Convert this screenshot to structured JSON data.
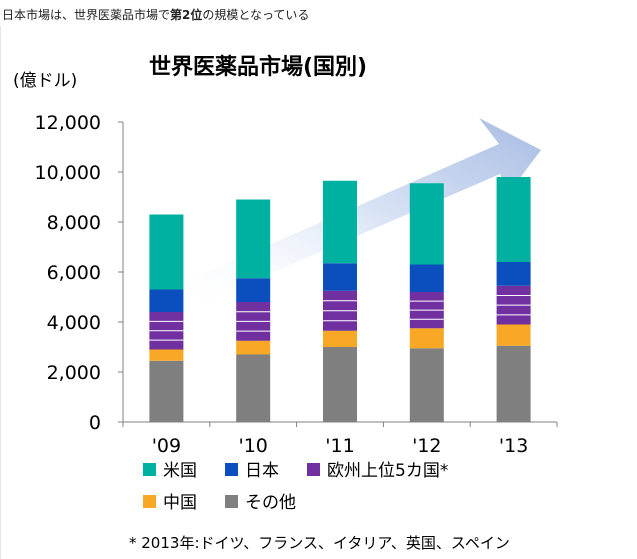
{
  "caption": {
    "part1": "日本市場は、世界医薬品市場で",
    "bold": "第2位",
    "part2": "の規模となっている"
  },
  "chart_data": {
    "type": "bar",
    "stacked": true,
    "title": "世界医薬品市場(国別)",
    "ylabel": "(億ドル)",
    "xlabel": "",
    "ylim": [
      0,
      12000
    ],
    "yticks": [
      0,
      2000,
      4000,
      6000,
      8000,
      10000,
      12000
    ],
    "ytick_labels": [
      "0",
      "2,000",
      "4,000",
      "6,000",
      "8,000",
      "10,000",
      "12,000"
    ],
    "categories": [
      "'09",
      "'10",
      "'11",
      "'12",
      "'13"
    ],
    "series": [
      {
        "name": "その他",
        "color": "#7f7f7f",
        "values": [
          2450,
          2700,
          3000,
          2950,
          3050
        ]
      },
      {
        "name": "中国",
        "color": "#f9a825",
        "values": [
          450,
          550,
          650,
          800,
          850
        ]
      },
      {
        "name": "欧州上位5カ国*",
        "color": "#7030a0",
        "values": [
          1500,
          1550,
          1600,
          1450,
          1550
        ]
      },
      {
        "name": "日本",
        "color": "#0b4fbe",
        "values": [
          900,
          950,
          1100,
          1100,
          950
        ]
      },
      {
        "name": "米国",
        "color": "#00b0a0",
        "values": [
          3000,
          3150,
          3300,
          3250,
          3400
        ]
      }
    ],
    "legend_order": [
      "米国",
      "日本",
      "欧州上位5カ国*",
      "中国",
      "その他"
    ],
    "legend_position": "bottom",
    "grid": false,
    "footnote": "* 2013年:ドイツ、フランス、イタリア、英国、スペイン"
  }
}
